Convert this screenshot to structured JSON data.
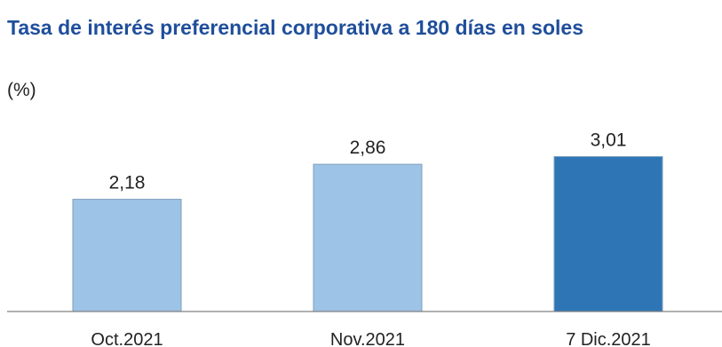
{
  "chart_data": {
    "type": "bar",
    "title": "Tasa de interés preferencial corporativa a 180 días en soles",
    "subtitle": "(%)",
    "categories": [
      "Oct.2021",
      "Nov.2021",
      "7 Dic.2021"
    ],
    "values": [
      2.18,
      2.86,
      3.01
    ],
    "value_labels": [
      "2,18",
      "2,86",
      "3,01"
    ],
    "colors": [
      "#9dc3e6",
      "#9dc3e6",
      "#2e75b6"
    ],
    "ylim": [
      0,
      4.5
    ],
    "grid": false,
    "legend": "none"
  },
  "colors": {
    "title": "#1f4e9b",
    "baseline": "#808080",
    "bar_border": "#7f9fbf"
  }
}
